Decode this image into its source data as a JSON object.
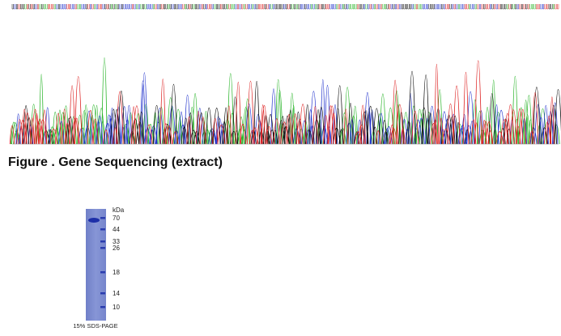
{
  "figure": {
    "caption": "Figure . Gene Sequencing (extract)"
  },
  "gel": {
    "unit": "kDa",
    "markers": [
      "70",
      "44",
      "33",
      "26",
      "18",
      "14",
      "10"
    ],
    "label": "15% SDS-PAGE"
  }
}
